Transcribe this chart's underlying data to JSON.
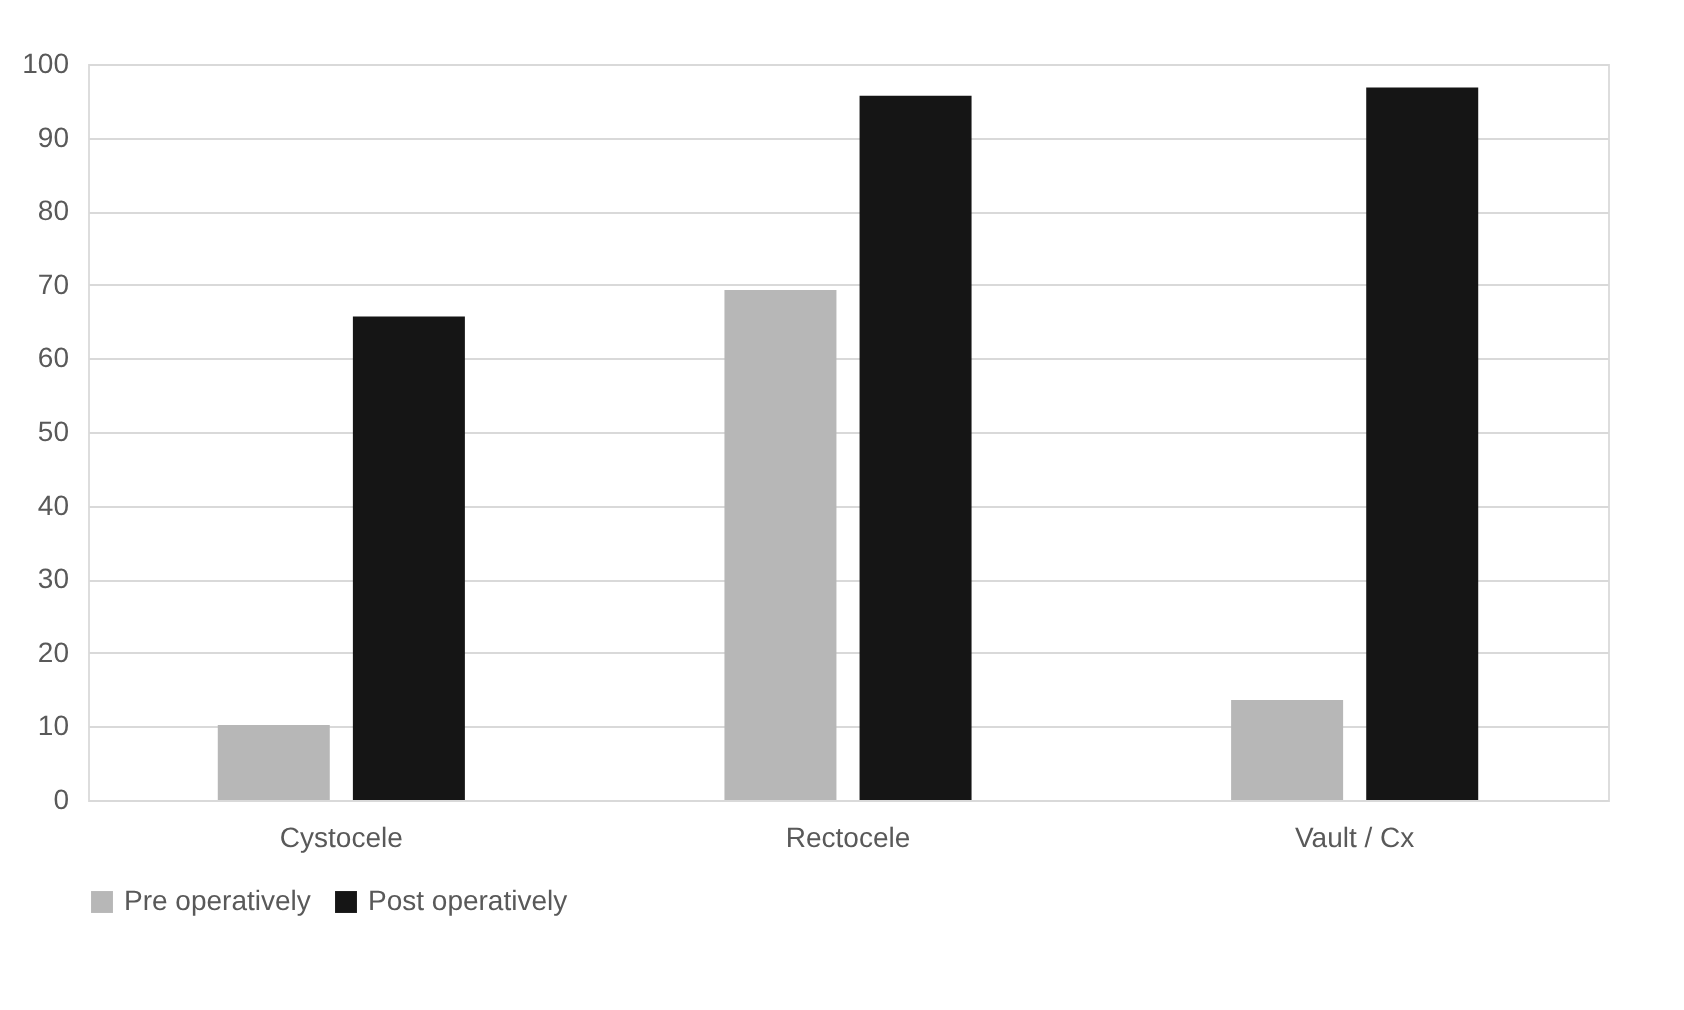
{
  "chart_data": {
    "type": "bar",
    "categories": [
      "Cystocele",
      "Rectocele",
      "Vault / Cx"
    ],
    "series": [
      {
        "name": "Pre operatively",
        "color": "#b7b7b7",
        "values": [
          10.2,
          69.3,
          13.6
        ]
      },
      {
        "name": "Post operatively",
        "color": "#151515",
        "values": [
          65.7,
          95.7,
          96.8
        ]
      }
    ],
    "ylim": [
      0,
      100
    ],
    "yticks": [
      0,
      10,
      20,
      30,
      40,
      50,
      60,
      70,
      80,
      90,
      100
    ],
    "grid": "y",
    "legend": "bottom"
  }
}
